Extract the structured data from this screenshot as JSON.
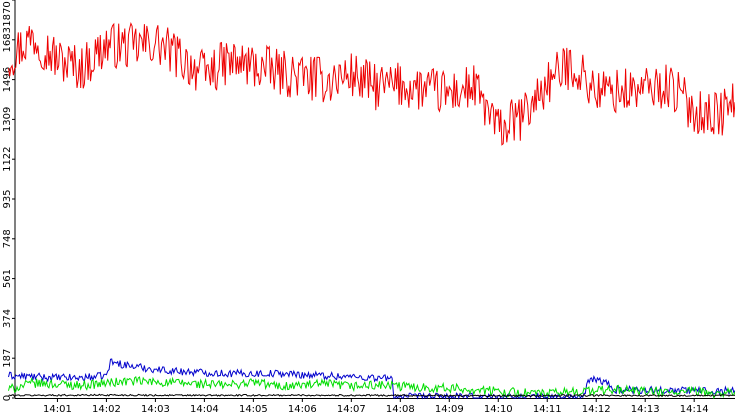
{
  "chart_data": {
    "type": "line",
    "title": "",
    "xlabel": "",
    "ylabel": "",
    "ylim": [
      0,
      1870
    ],
    "y_ticks": [
      "0",
      "187",
      "374",
      "561",
      "748",
      "935",
      "1122",
      "1309",
      "1496",
      "1683",
      "1870"
    ],
    "x_ticks": [
      "14:01",
      "14:02",
      "14:03",
      "14:04",
      "14:05",
      "14:06",
      "14:07",
      "14:08",
      "14:09",
      "14:10",
      "14:11",
      "14:12",
      "14:13",
      "14:14"
    ],
    "xlim": [
      "14:00:08",
      "14:14:50"
    ],
    "grid": false,
    "legend": "none",
    "series": [
      {
        "color": "#ee0000",
        "x": [
          "14:00",
          "14:00:30",
          "14:01",
          "14:01:30",
          "14:02",
          "14:02:30",
          "14:03",
          "14:03:30",
          "14:04",
          "14:04:30",
          "14:05",
          "14:05:30",
          "14:06",
          "14:06:30",
          "14:07",
          "14:07:30",
          "14:08",
          "14:08:30",
          "14:09",
          "14:09:30",
          "14:10",
          "14:10:30",
          "14:11",
          "14:11:30",
          "14:12",
          "14:12:30",
          "14:13",
          "14:13:30",
          "14:14",
          "14:14:30",
          "14:14:50"
        ],
        "values": [
          1600,
          1700,
          1590,
          1550,
          1660,
          1650,
          1670,
          1600,
          1520,
          1580,
          1560,
          1530,
          1510,
          1490,
          1520,
          1460,
          1470,
          1450,
          1430,
          1460,
          1260,
          1320,
          1480,
          1570,
          1440,
          1440,
          1450,
          1470,
          1350,
          1330,
          1390
        ]
      },
      {
        "color": "#0000cc",
        "x": [
          "14:00",
          "14:00:30",
          "14:01",
          "14:01:30",
          "14:02",
          "14:02:05",
          "14:02:30",
          "14:03",
          "14:03:30",
          "14:04",
          "14:04:30",
          "14:05",
          "14:05:30",
          "14:06",
          "14:06:30",
          "14:07",
          "14:07:30",
          "14:07:50",
          "14:07:52",
          "14:08:30",
          "14:09",
          "14:10",
          "14:11",
          "14:11:45",
          "14:11:50",
          "14:12",
          "14:12:15",
          "14:12:20",
          "14:13",
          "14:14",
          "14:14:50"
        ],
        "values": [
          105,
          100,
          95,
          95,
          105,
          170,
          150,
          135,
          125,
          120,
          115,
          115,
          115,
          110,
          105,
          100,
          95,
          90,
          6,
          5,
          5,
          5,
          5,
          5,
          75,
          90,
          65,
          40,
          38,
          35,
          35
        ]
      },
      {
        "color": "#00dd00",
        "x": [
          "14:00",
          "14:00:30",
          "14:01",
          "14:01:30",
          "14:02",
          "14:02:30",
          "14:03",
          "14:03:30",
          "14:04",
          "14:04:30",
          "14:05",
          "14:05:30",
          "14:06",
          "14:06:30",
          "14:07",
          "14:07:30",
          "14:08",
          "14:08:30",
          "14:09",
          "14:09:30",
          "14:10",
          "14:10:30",
          "14:11",
          "14:11:30",
          "14:12",
          "14:12:30",
          "14:13",
          "14:13:30",
          "14:14",
          "14:14:30",
          "14:14:50"
        ],
        "values": [
          40,
          70,
          65,
          60,
          70,
          80,
          75,
          70,
          65,
          60,
          75,
          55,
          60,
          65,
          55,
          60,
          55,
          50,
          45,
          40,
          30,
          25,
          20,
          30,
          35,
          40,
          30,
          25,
          30,
          20,
          30
        ]
      },
      {
        "color": "#000000",
        "x": [
          "14:00",
          "14:02",
          "14:04",
          "14:06",
          "14:08",
          "14:10",
          "14:12",
          "14:14",
          "14:14:50"
        ],
        "values": [
          12,
          14,
          12,
          13,
          12,
          10,
          12,
          11,
          12
        ]
      }
    ]
  }
}
